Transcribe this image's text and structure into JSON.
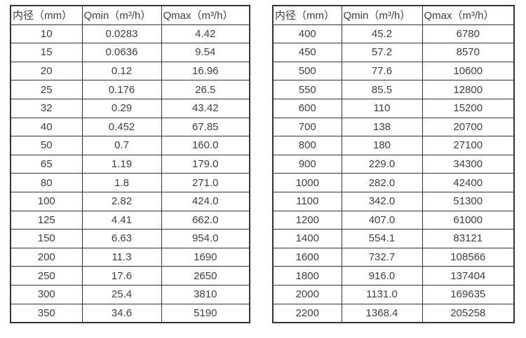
{
  "colors": {
    "border": "#333333",
    "text": "#3f3f3f",
    "background": "#ffffff"
  },
  "tables": [
    {
      "name": "diameter-flow-table-left",
      "headers": [
        "内径（mm）",
        "Qmin（m³/h）",
        "Qmax（m³/h）"
      ],
      "rows": [
        [
          "10",
          "0.0283",
          "4.42"
        ],
        [
          "15",
          "0.0636",
          "9.54"
        ],
        [
          "20",
          "0.12",
          "16.96"
        ],
        [
          "25",
          "0.176",
          "26.5"
        ],
        [
          "32",
          "0.29",
          "43.42"
        ],
        [
          "40",
          "0.452",
          "67.85"
        ],
        [
          "50",
          "0.7",
          "160.0"
        ],
        [
          "65",
          "1.19",
          "179.0"
        ],
        [
          "80",
          "1.8",
          "271.0"
        ],
        [
          "100",
          "2.82",
          "424.0"
        ],
        [
          "125",
          "4.41",
          "662.0"
        ],
        [
          "150",
          "6.63",
          "954.0"
        ],
        [
          "200",
          "11.3",
          "1690"
        ],
        [
          "250",
          "17.6",
          "2650"
        ],
        [
          "300",
          "25.4",
          "3810"
        ],
        [
          "350",
          "34.6",
          "5190"
        ]
      ]
    },
    {
      "name": "diameter-flow-table-right",
      "headers": [
        "内径（mm）",
        "Qmin（m³/h）",
        "Qmax（m³/h）"
      ],
      "rows": [
        [
          "400",
          "45.2",
          "6780"
        ],
        [
          "450",
          "57.2",
          "8570"
        ],
        [
          "500",
          "77.6",
          "10600"
        ],
        [
          "550",
          "85.5",
          "12800"
        ],
        [
          "600",
          "110",
          "15200"
        ],
        [
          "700",
          "138",
          "20700"
        ],
        [
          "800",
          "180",
          "27100"
        ],
        [
          "900",
          "229.0",
          "34300"
        ],
        [
          "1000",
          "282.0",
          "42400"
        ],
        [
          "1100",
          "342.0",
          "51300"
        ],
        [
          "1200",
          "407.0",
          "61000"
        ],
        [
          "1400",
          "554.1",
          "83121"
        ],
        [
          "1600",
          "732.7",
          "108566"
        ],
        [
          "1800",
          "916.0",
          "137404"
        ],
        [
          "2000",
          "1131.0",
          "169635"
        ],
        [
          "2200",
          "1368.4",
          "205258"
        ]
      ]
    }
  ]
}
